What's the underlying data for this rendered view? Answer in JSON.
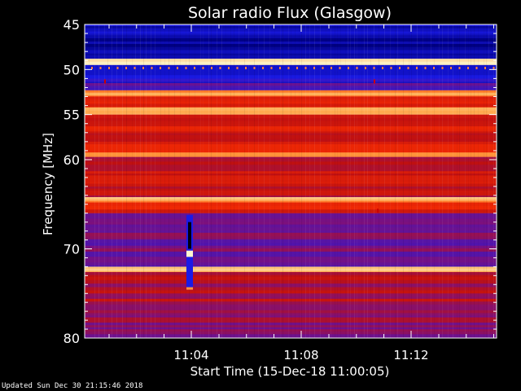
{
  "chart_data": {
    "type": "heatmap",
    "title": "Solar radio Flux (Glasgow)",
    "xlabel": "Start Time (15-Dec-18 11:00:05)",
    "ylabel": "Frequency [MHz]",
    "x_ticks": [
      "11:04",
      "11:08",
      "11:12"
    ],
    "y_ticks": [
      45,
      50,
      55,
      60,
      70,
      80
    ],
    "ylim": [
      45,
      80
    ],
    "colormap": [
      "#000080",
      "#1a1ae6",
      "#7a1080",
      "#c01010",
      "#ff3000",
      "#ffa040",
      "#fff0c0"
    ],
    "bands": [
      {
        "from": 45.0,
        "to": 46.2,
        "level": 0.1
      },
      {
        "from": 46.2,
        "to": 48.8,
        "level": 0.05
      },
      {
        "from": 48.8,
        "to": 49.5,
        "level": 0.95
      },
      {
        "from": 49.5,
        "to": 51.5,
        "level": 0.15
      },
      {
        "from": 51.5,
        "to": 52.3,
        "level": 0.3
      },
      {
        "from": 52.3,
        "to": 53.0,
        "level": 0.8
      },
      {
        "from": 53.0,
        "to": 54.2,
        "level": 0.6
      },
      {
        "from": 54.2,
        "to": 55.0,
        "level": 0.85
      },
      {
        "from": 55.0,
        "to": 59.2,
        "level": 0.55
      },
      {
        "from": 59.2,
        "to": 59.7,
        "level": 0.85
      },
      {
        "from": 59.7,
        "to": 64.2,
        "level": 0.5
      },
      {
        "from": 64.2,
        "to": 64.8,
        "level": 0.85
      },
      {
        "from": 64.8,
        "to": 66.0,
        "level": 0.55
      },
      {
        "from": 66.0,
        "to": 72.0,
        "level": 0.32
      },
      {
        "from": 72.0,
        "to": 72.6,
        "level": 0.9
      },
      {
        "from": 72.6,
        "to": 76.0,
        "level": 0.45
      },
      {
        "from": 76.0,
        "to": 80.0,
        "level": 0.38
      }
    ]
  },
  "footer": {
    "updated": "Updated Sun Dec 30 21:15:46 2018"
  }
}
